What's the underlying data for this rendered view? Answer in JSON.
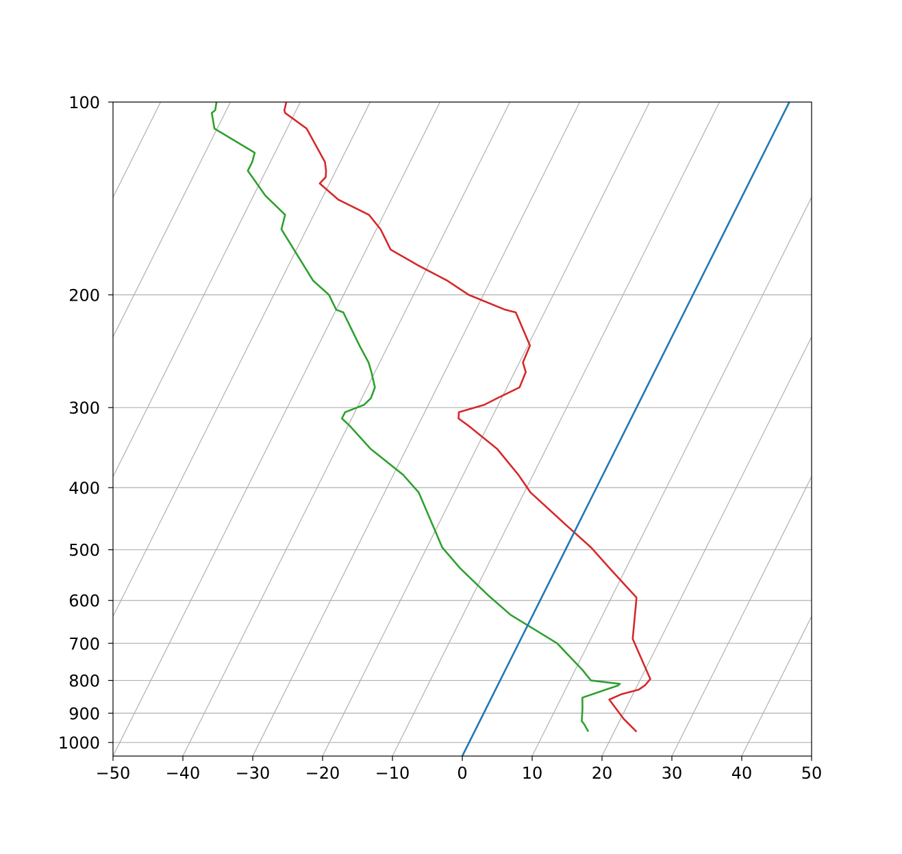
{
  "chart_data": {
    "type": "line",
    "title": "",
    "xlabel": "",
    "ylabel": "",
    "xlim": [
      -50,
      50
    ],
    "ylim": [
      1050,
      100
    ],
    "y_scale": "log",
    "y_inverted": true,
    "grid": true,
    "skew": "skew-T log-p",
    "x_ticks": [
      "−50",
      "−40",
      "−30",
      "−20",
      "−10",
      "0",
      "10",
      "20",
      "30",
      "40",
      "50"
    ],
    "y_ticks": [
      "100",
      "200",
      "300",
      "400",
      "500",
      "600",
      "700",
      "800",
      "900",
      "1000"
    ],
    "y_tick_values": [
      100,
      200,
      300,
      400,
      500,
      600,
      700,
      800,
      900,
      1000
    ],
    "skewed_isotherms": [
      -150,
      -140,
      -130,
      -120,
      -110,
      -100,
      -90,
      -80,
      -70,
      -60,
      -50,
      -40,
      -30,
      -20,
      -10,
      0,
      10,
      20,
      30,
      40
    ],
    "series": [
      {
        "color": "#d62728",
        "points": [
          [
            962,
            23.2
          ],
          [
            918,
            20.4
          ],
          [
            857,
            17.0
          ],
          [
            841,
            18.3
          ],
          [
            827,
            20.5
          ],
          [
            814,
            21.1
          ],
          [
            796,
            21.4
          ],
          [
            689,
            16.0
          ],
          [
            628,
            14.5
          ],
          [
            594,
            13.6
          ],
          [
            534,
            7.6
          ],
          [
            496,
            3.5
          ],
          [
            461,
            -1.2
          ],
          [
            407,
            -9.1
          ],
          [
            382,
            -12.1
          ],
          [
            348,
            -17.0
          ],
          [
            320,
            -22.8
          ],
          [
            312,
            -24.7
          ],
          [
            305,
            -25.1
          ],
          [
            297,
            -22.0
          ],
          [
            290,
            -20.6
          ],
          [
            279,
            -18.2
          ],
          [
            264,
            -18.4
          ],
          [
            255,
            -19.5
          ],
          [
            240,
            -19.7
          ],
          [
            213,
            -24.1
          ],
          [
            211,
            -25.8
          ],
          [
            200,
            -32.1
          ],
          [
            190,
            -36.2
          ],
          [
            180,
            -41.4
          ],
          [
            170,
            -46.5
          ],
          [
            158,
            -49.4
          ],
          [
            150,
            -52.1
          ],
          [
            142,
            -57.6
          ],
          [
            134,
            -61.4
          ],
          [
            131,
            -61.0
          ],
          [
            128,
            -61.4
          ],
          [
            124,
            -62.2
          ],
          [
            110,
            -67.2
          ],
          [
            104,
            -71.4
          ],
          [
            103,
            -71.7
          ],
          [
            100,
            -72.0
          ]
        ]
      },
      {
        "color": "#2ca02c",
        "points": [
          [
            962,
            16.3
          ],
          [
            935,
            15.1
          ],
          [
            926,
            14.6
          ],
          [
            885,
            13.8
          ],
          [
            851,
            13.0
          ],
          [
            815,
            17.2
          ],
          [
            810,
            17.4
          ],
          [
            800,
            13.0
          ],
          [
            770,
            11.0
          ],
          [
            700,
            5.5
          ],
          [
            632,
            -3.2
          ],
          [
            590,
            -7.7
          ],
          [
            534,
            -13.8
          ],
          [
            496,
            -17.8
          ],
          [
            407,
            -25.1
          ],
          [
            382,
            -28.6
          ],
          [
            348,
            -35.1
          ],
          [
            320,
            -39.8
          ],
          [
            312,
            -41.4
          ],
          [
            305,
            -41.4
          ],
          [
            297,
            -39.2
          ],
          [
            290,
            -38.7
          ],
          [
            279,
            -38.9
          ],
          [
            264,
            -40.5
          ],
          [
            255,
            -41.6
          ],
          [
            240,
            -44.1
          ],
          [
            213,
            -48.8
          ],
          [
            211,
            -50.0
          ],
          [
            200,
            -52.1
          ],
          [
            190,
            -55.4
          ],
          [
            158,
            -63.6
          ],
          [
            150,
            -64.1
          ],
          [
            140,
            -68.3
          ],
          [
            128,
            -72.6
          ],
          [
            124,
            -72.6
          ],
          [
            120,
            -72.9
          ],
          [
            110,
            -80.4
          ],
          [
            104,
            -81.9
          ],
          [
            103,
            -81.6
          ],
          [
            100,
            -82.0
          ]
        ]
      },
      {
        "color": "#1f77b4",
        "points": [
          [
            1050,
            0
          ],
          [
            100,
            0
          ]
        ]
      }
    ]
  }
}
